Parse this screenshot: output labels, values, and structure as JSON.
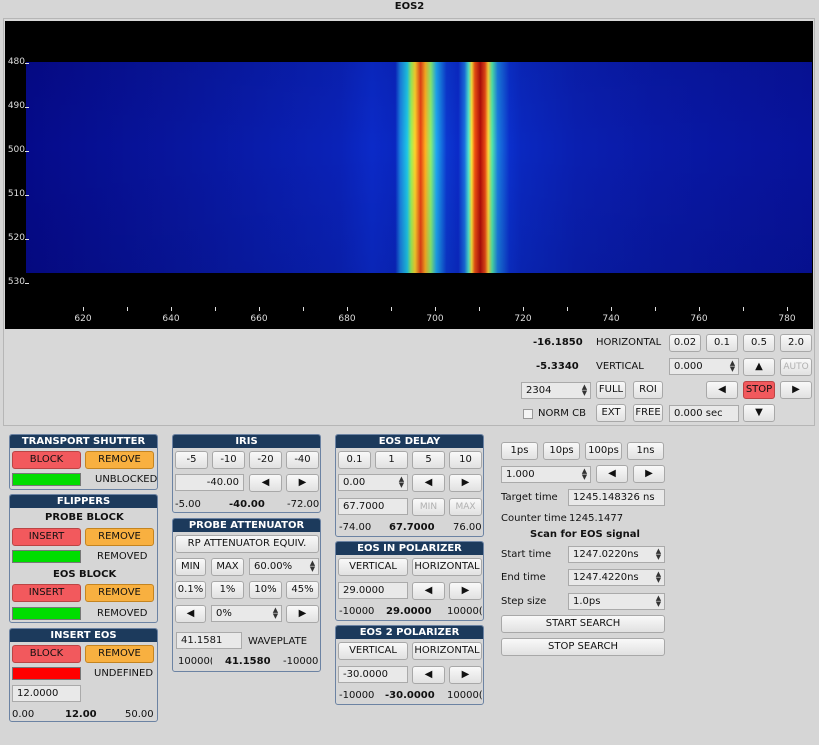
{
  "window": {
    "title": "EOS2"
  },
  "plot": {
    "y_ticks": [
      "480",
      "490",
      "500",
      "510",
      "520",
      "530"
    ],
    "x_ticks": [
      "620",
      "640",
      "660",
      "680",
      "700",
      "720",
      "740",
      "760",
      "780"
    ]
  },
  "readout": {
    "horizontal_value": "-16.1850",
    "horizontal_label": "HORIZONTAL",
    "vertical_value": "-5.3340",
    "vertical_label": "VERTICAL",
    "step_buttons": [
      "0.02",
      "0.1",
      "0.5",
      "2.0"
    ],
    "vertical_spin": "0.000",
    "up_arrow": "▲",
    "auto_label": "AUTO",
    "frame_spin": "2304",
    "full_label": "FULL",
    "roi_label": "ROI",
    "left_arrow": "◀",
    "stop_label": "STOP",
    "right_arrow": "▶",
    "norm_cb_label": "NORM CB",
    "ext_label": "EXT",
    "free_label": "FREE",
    "time_value": "0.000 sec",
    "down_arrow": "▼"
  },
  "transport_shutter": {
    "title": "TRANSPORT SHUTTER",
    "block": "BLOCK",
    "remove": "REMOVE",
    "status": "UNBLOCKED",
    "status_color": "#00dd00"
  },
  "flippers": {
    "title": "FLIPPERS",
    "probe_block": {
      "title": "PROBE BLOCK",
      "insert": "INSERT",
      "remove": "REMOVE",
      "status": "REMOVED"
    },
    "eos_block": {
      "title": "EOS BLOCK",
      "insert": "INSERT",
      "remove": "REMOVE",
      "status": "REMOVED"
    }
  },
  "insert_eos": {
    "title": "INSERT EOS",
    "block": "BLOCK",
    "remove": "REMOVE",
    "status": "UNDEFINED",
    "status_color": "#ff0000",
    "value": "12.0000",
    "min": "0.00",
    "current": "12.00",
    "max": "50.00"
  },
  "iris": {
    "title": "IRIS",
    "steps": [
      "-5",
      "-10",
      "-20",
      "-40"
    ],
    "value": "-40.00",
    "left": "◀",
    "right": "▶",
    "min": "-5.00",
    "current": "-40.00",
    "max": "-72.00"
  },
  "probe_attenuator": {
    "title": "PROBE ATTENUATOR",
    "equiv": "RP ATTENUATOR  EQUIV.",
    "min": "MIN",
    "max": "MAX",
    "percent_spin": "60.00%",
    "steps": [
      "0.1%",
      "1%",
      "10%",
      "45%"
    ],
    "left": "◀",
    "step_spin": "0%",
    "right": "▶",
    "waveplate_value": "41.1581",
    "waveplate_label": "WAVEPLATE",
    "range_low": "10000(",
    "current": "41.1580",
    "range_high": "-10000"
  },
  "eos_delay": {
    "title": "EOS DELAY",
    "steps": [
      "0.1",
      "1",
      "5",
      "10"
    ],
    "spin": "0.00",
    "left": "◀",
    "right": "▶",
    "value": "67.7000",
    "min_btn": "MIN",
    "max_btn": "MAX",
    "min": "-74.00",
    "current": "67.7000",
    "max": "76.00"
  },
  "eos_in_polarizer": {
    "title": "EOS IN POLARIZER",
    "vertical": "VERTICAL",
    "horizontal": "HORIZONTAL",
    "value": "29.0000",
    "left": "◀",
    "right": "▶",
    "min": "-10000",
    "current": "29.0000",
    "max": "10000("
  },
  "eos2_polarizer": {
    "title": "EOS 2 POLARIZER",
    "vertical": "VERTICAL",
    "horizontal": "HORIZONTAL",
    "value": "-30.0000",
    "left": "◀",
    "right": "▶",
    "min": "-10000",
    "current": "-30.0000",
    "max": "10000("
  },
  "scan": {
    "steps": [
      "1ps",
      "10ps",
      "100ps",
      "1ns"
    ],
    "spin": "1.000",
    "left": "◀",
    "right": "▶",
    "target_label": "Target time",
    "target_value": "1245.148326 ns",
    "counter_label": "Counter time",
    "counter_value": "1245.1477",
    "heading": "Scan for EOS signal",
    "start_label": "Start time",
    "start_value": "1247.0220ns",
    "end_label": "End time",
    "end_value": "1247.4220ns",
    "step_label": "Step size",
    "step_value": "1.0ps",
    "start_search": "START SEARCH",
    "stop_search": "STOP SEARCH"
  }
}
